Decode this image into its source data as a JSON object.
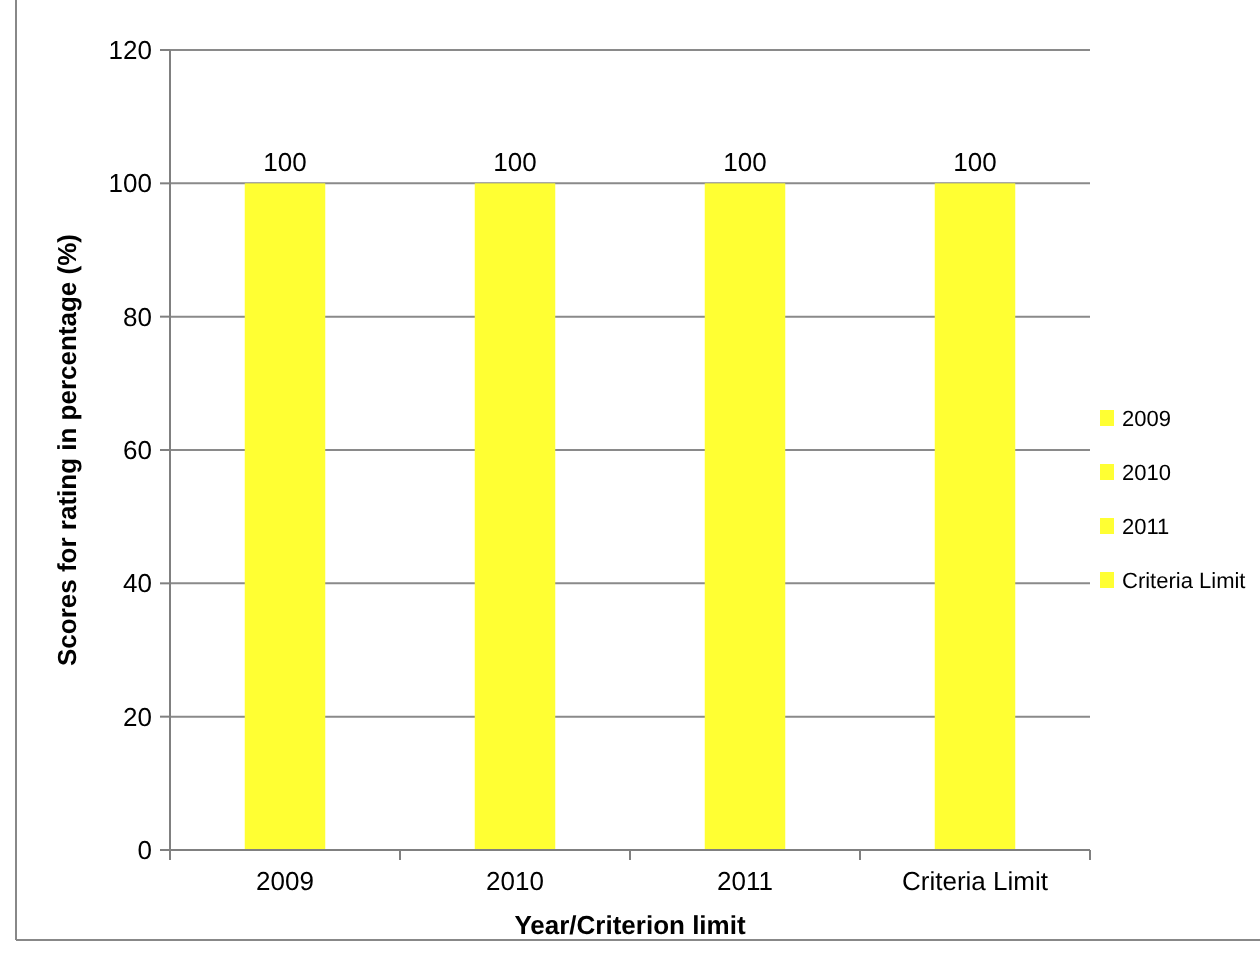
{
  "chart_data": {
    "type": "bar",
    "xlabel": "Year/Criterion limit",
    "ylabel": "Scores for rating in percentage (%)",
    "categories": [
      "2009",
      "2010",
      "2011",
      "Criteria Limit"
    ],
    "series": [
      {
        "name": "2009",
        "color": "#ffff33",
        "values": [
          100,
          null,
          null,
          null
        ]
      },
      {
        "name": "2010",
        "color": "#ffff33",
        "values": [
          null,
          100,
          null,
          null
        ]
      },
      {
        "name": "2011",
        "color": "#ffff33",
        "values": [
          null,
          null,
          100,
          null
        ]
      },
      {
        "name": "Criteria Limit",
        "color": "#ffff33",
        "values": [
          null,
          null,
          null,
          100
        ]
      }
    ],
    "ylim": [
      0,
      120
    ],
    "yticks": [
      0,
      20,
      40,
      60,
      80,
      100,
      120
    ],
    "grid": "y",
    "legend": "right",
    "data_labels": true
  }
}
